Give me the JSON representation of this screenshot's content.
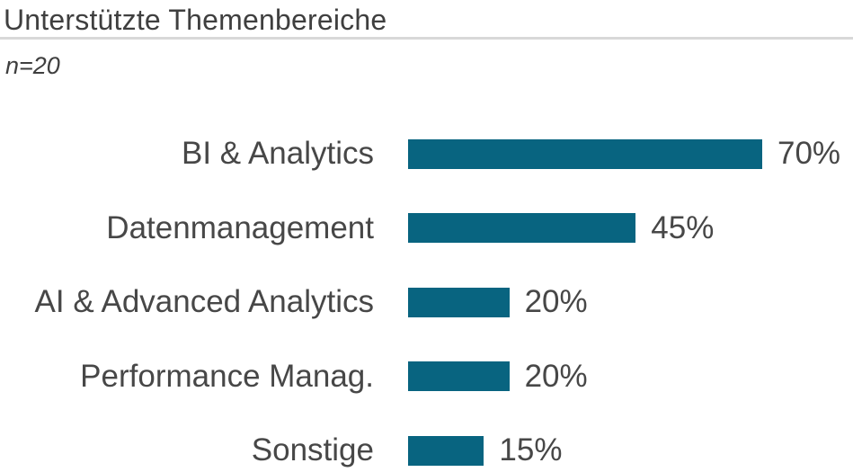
{
  "header": {
    "title": "Unterstützte Themenbereiche",
    "subtitle": "n=20"
  },
  "colors": {
    "bar": "#086480",
    "text": "#474747",
    "title_text": "#3f3f3f",
    "divider": "#d8d8d8",
    "background": "#ffffff"
  },
  "chart_data": {
    "type": "bar",
    "orientation": "horizontal",
    "title": "Unterstützte Themenbereiche",
    "subtitle": "n=20",
    "sample_size": 20,
    "categories": [
      "BI & Analytics",
      "Datenmanagement",
      "AI & Advanced Analytics",
      "Performance Manag.",
      "Sonstige"
    ],
    "values": [
      70,
      45,
      20,
      20,
      15
    ],
    "value_labels": [
      "70%",
      "45%",
      "20%",
      "20%",
      "15%"
    ],
    "unit": "%",
    "xlim": [
      0,
      100
    ],
    "grid": false,
    "legend": false,
    "data_labels_position": "right-of-bar",
    "category_labels_position": "left-of-bar"
  }
}
